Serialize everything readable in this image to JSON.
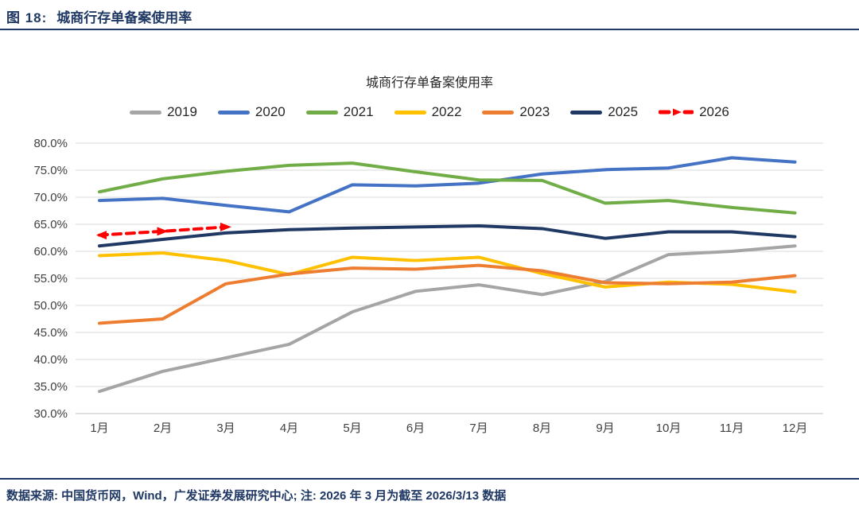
{
  "figure": {
    "label": "图 18:",
    "title": "城商行存单备案使用率"
  },
  "chart_data": {
    "type": "line",
    "title": "城商行存单备案使用率",
    "x_categories": [
      "1月",
      "2月",
      "3月",
      "4月",
      "5月",
      "6月",
      "7月",
      "8月",
      "9月",
      "10月",
      "11月",
      "12月"
    ],
    "y_axis": {
      "min": 30,
      "max": 80,
      "step": 5,
      "tick_labels": [
        "80.0%",
        "75.0%",
        "70.0%",
        "65.0%",
        "60.0%",
        "55.0%",
        "50.0%",
        "45.0%",
        "40.0%",
        "35.0%",
        "30.0%"
      ],
      "unit": "percent"
    },
    "grid": "horizontal",
    "legend_position": "top",
    "series": [
      {
        "name": "2019",
        "color": "#A5A5A5",
        "style": "solid",
        "values": [
          34.1,
          37.8,
          40.3,
          42.8,
          48.8,
          52.6,
          53.8,
          52.0,
          54.4,
          59.4,
          60.0,
          61.0
        ]
      },
      {
        "name": "2020",
        "color": "#4472C4",
        "style": "solid",
        "values": [
          69.4,
          69.8,
          68.5,
          67.3,
          72.3,
          72.1,
          72.6,
          74.3,
          75.1,
          75.4,
          77.3,
          76.5
        ]
      },
      {
        "name": "2021",
        "color": "#70AD47",
        "style": "solid",
        "values": [
          71.0,
          73.4,
          74.8,
          75.9,
          76.3,
          74.7,
          73.2,
          73.1,
          68.9,
          69.4,
          68.1,
          67.1
        ]
      },
      {
        "name": "2022",
        "color": "#FFC000",
        "style": "solid",
        "values": [
          59.2,
          59.7,
          58.3,
          55.7,
          58.9,
          58.3,
          58.9,
          55.9,
          53.4,
          54.3,
          53.9,
          52.5
        ]
      },
      {
        "name": "2023",
        "color": "#ED7D31",
        "style": "solid",
        "values": [
          46.7,
          47.5,
          54.0,
          55.8,
          56.9,
          56.7,
          57.4,
          56.4,
          54.2,
          54.0,
          54.3,
          55.5
        ]
      },
      {
        "name": "2025",
        "color": "#203864",
        "style": "solid",
        "values": [
          61.0,
          62.2,
          63.4,
          64.0,
          64.3,
          64.5,
          64.7,
          64.2,
          62.4,
          63.6,
          63.6,
          62.7
        ]
      },
      {
        "name": "2026",
        "color": "#FF0000",
        "style": "dashed-arrow",
        "values": [
          63.0,
          63.7,
          64.5
        ]
      }
    ]
  },
  "footer": {
    "text": "数据来源: 中国货币网，Wind，广发证券发展研究中心; 注: 2026 年 3 月为截至 2026/3/13 数据"
  }
}
